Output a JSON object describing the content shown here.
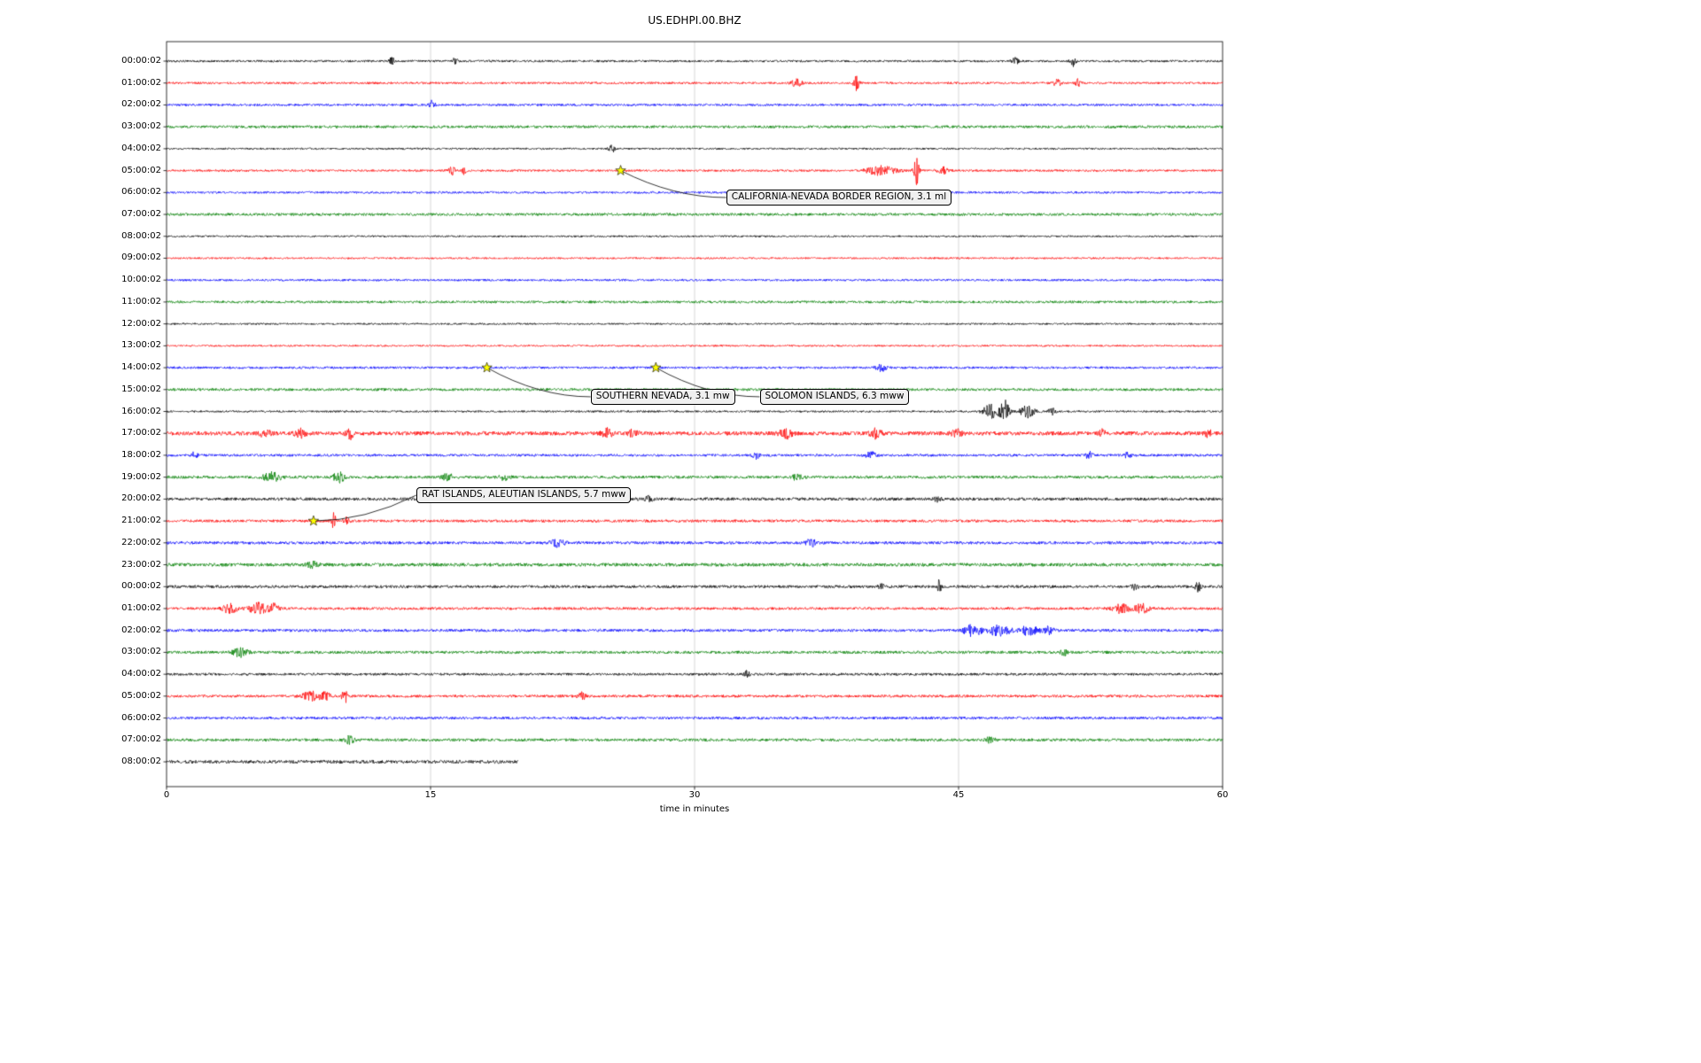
{
  "chart_data": {
    "type": "line",
    "subtype": "helicorder-dayplot",
    "title": "US.EDHPI.00.BHZ",
    "xlabel": "time in minutes",
    "xlim": [
      0,
      60
    ],
    "xticks": [
      0,
      15,
      30,
      45,
      60
    ],
    "grid": "vertical-only",
    "trace_colors": {
      "black": "#000000",
      "red": "#ff0000",
      "blue": "#0000ff",
      "green": "#008000"
    },
    "marker": {
      "shape": "star",
      "color": "#ffff00"
    },
    "rows": [
      {
        "label": "00:00:02",
        "color": "black",
        "amp": 1.2,
        "events": [
          {
            "x": 12.8,
            "a": 4,
            "w": 0.15
          },
          {
            "x": 16.4,
            "a": 5,
            "w": 0.12
          },
          {
            "x": 48.2,
            "a": 4,
            "w": 0.2
          },
          {
            "x": 51.5,
            "a": 6,
            "w": 0.15
          }
        ]
      },
      {
        "label": "01:00:02",
        "color": "red",
        "amp": 1.2,
        "events": [
          {
            "x": 35.8,
            "a": 4,
            "w": 0.3
          },
          {
            "x": 39.2,
            "a": 9,
            "w": 0.15
          },
          {
            "x": 50.6,
            "a": 4,
            "w": 0.2
          },
          {
            "x": 51.8,
            "a": 5,
            "w": 0.15
          }
        ]
      },
      {
        "label": "02:00:02",
        "color": "blue",
        "amp": 1.3,
        "events": [
          {
            "x": 15.1,
            "a": 5,
            "w": 0.15
          }
        ]
      },
      {
        "label": "03:00:02",
        "color": "green",
        "amp": 1.5,
        "events": []
      },
      {
        "label": "04:00:02",
        "color": "black",
        "amp": 1.0,
        "events": [
          {
            "x": 25.3,
            "a": 4,
            "w": 0.18
          }
        ]
      },
      {
        "label": "05:00:02",
        "color": "red",
        "amp": 1.2,
        "events": [
          {
            "x": 16.2,
            "a": 5,
            "w": 0.18
          },
          {
            "x": 16.9,
            "a": 4,
            "w": 0.12
          },
          {
            "x": 40.6,
            "a": 5,
            "w": 0.8
          },
          {
            "x": 42.6,
            "a": 16,
            "w": 0.15
          },
          {
            "x": 44.1,
            "a": 4,
            "w": 0.3
          }
        ]
      },
      {
        "label": "06:00:02",
        "color": "blue",
        "amp": 1.2,
        "events": []
      },
      {
        "label": "07:00:02",
        "color": "green",
        "amp": 1.5,
        "events": []
      },
      {
        "label": "08:00:02",
        "color": "black",
        "amp": 1.0,
        "events": []
      },
      {
        "label": "09:00:02",
        "color": "red",
        "amp": 1.0,
        "events": []
      },
      {
        "label": "10:00:02",
        "color": "blue",
        "amp": 1.2,
        "events": []
      },
      {
        "label": "11:00:02",
        "color": "green",
        "amp": 1.4,
        "events": []
      },
      {
        "label": "12:00:02",
        "color": "black",
        "amp": 1.0,
        "events": []
      },
      {
        "label": "13:00:02",
        "color": "red",
        "amp": 1.0,
        "events": []
      },
      {
        "label": "14:00:02",
        "color": "blue",
        "amp": 1.3,
        "events": [
          {
            "x": 40.6,
            "a": 4,
            "w": 0.3
          }
        ]
      },
      {
        "label": "15:00:02",
        "color": "green",
        "amp": 1.5,
        "events": []
      },
      {
        "label": "16:00:02",
        "color": "black",
        "amp": 1.1,
        "events": [
          {
            "x": 46.8,
            "a": 8,
            "w": 0.4
          },
          {
            "x": 47.6,
            "a": 14,
            "w": 0.25
          },
          {
            "x": 48.9,
            "a": 7,
            "w": 0.4
          },
          {
            "x": 50.3,
            "a": 4,
            "w": 0.2
          }
        ]
      },
      {
        "label": "17:00:02",
        "color": "red",
        "amp": 2.2,
        "events": [
          {
            "x": 5.6,
            "a": 4,
            "w": 0.3
          },
          {
            "x": 7.6,
            "a": 5,
            "w": 0.3
          },
          {
            "x": 10.4,
            "a": 7,
            "w": 0.2
          },
          {
            "x": 25.0,
            "a": 5,
            "w": 0.3
          },
          {
            "x": 26.5,
            "a": 4,
            "w": 0.25
          },
          {
            "x": 35.2,
            "a": 5,
            "w": 0.35
          },
          {
            "x": 40.3,
            "a": 5,
            "w": 0.3
          },
          {
            "x": 44.9,
            "a": 4,
            "w": 0.3
          },
          {
            "x": 53.2,
            "a": 4,
            "w": 0.2
          },
          {
            "x": 59.2,
            "a": 4,
            "w": 0.2
          }
        ]
      },
      {
        "label": "18:00:02",
        "color": "blue",
        "amp": 1.4,
        "events": [
          {
            "x": 1.6,
            "a": 4,
            "w": 0.2
          },
          {
            "x": 33.5,
            "a": 4,
            "w": 0.2
          },
          {
            "x": 40.0,
            "a": 4,
            "w": 0.3
          },
          {
            "x": 52.4,
            "a": 4,
            "w": 0.2
          },
          {
            "x": 54.6,
            "a": 3,
            "w": 0.2
          }
        ]
      },
      {
        "label": "19:00:02",
        "color": "green",
        "amp": 1.6,
        "events": [
          {
            "x": 6.0,
            "a": 5,
            "w": 0.5
          },
          {
            "x": 9.8,
            "a": 6,
            "w": 0.3
          },
          {
            "x": 16.0,
            "a": 4,
            "w": 0.3
          },
          {
            "x": 19.2,
            "a": 3,
            "w": 0.3
          },
          {
            "x": 35.8,
            "a": 3,
            "w": 0.3
          }
        ]
      },
      {
        "label": "20:00:02",
        "color": "black",
        "amp": 1.7,
        "events": [
          {
            "x": 27.4,
            "a": 3,
            "w": 0.2
          },
          {
            "x": 43.8,
            "a": 3,
            "w": 0.2
          }
        ]
      },
      {
        "label": "21:00:02",
        "color": "red",
        "amp": 1.5,
        "events": [
          {
            "x": 9.5,
            "a": 9,
            "w": 0.12
          },
          {
            "x": 10.2,
            "a": 4,
            "w": 0.15
          }
        ]
      },
      {
        "label": "22:00:02",
        "color": "blue",
        "amp": 1.6,
        "events": [
          {
            "x": 22.2,
            "a": 4,
            "w": 0.4
          },
          {
            "x": 36.6,
            "a": 4,
            "w": 0.3
          }
        ]
      },
      {
        "label": "23:00:02",
        "color": "green",
        "amp": 1.9,
        "events": [
          {
            "x": 8.3,
            "a": 3,
            "w": 0.3
          }
        ]
      },
      {
        "label": "00:00:02",
        "color": "black",
        "amp": 1.6,
        "events": [
          {
            "x": 40.6,
            "a": 4,
            "w": 0.15
          },
          {
            "x": 43.9,
            "a": 8,
            "w": 0.1
          },
          {
            "x": 55.0,
            "a": 3,
            "w": 0.2
          },
          {
            "x": 58.6,
            "a": 5,
            "w": 0.15
          }
        ]
      },
      {
        "label": "01:00:02",
        "color": "red",
        "amp": 1.5,
        "events": [
          {
            "x": 3.6,
            "a": 5,
            "w": 0.4
          },
          {
            "x": 5.2,
            "a": 6,
            "w": 0.5
          },
          {
            "x": 6.1,
            "a": 5,
            "w": 0.3
          },
          {
            "x": 54.2,
            "a": 5,
            "w": 0.5
          },
          {
            "x": 55.4,
            "a": 5,
            "w": 0.4
          }
        ]
      },
      {
        "label": "02:00:02",
        "color": "blue",
        "amp": 1.6,
        "events": [
          {
            "x": 45.8,
            "a": 6,
            "w": 0.5
          },
          {
            "x": 47.3,
            "a": 6,
            "w": 0.6
          },
          {
            "x": 49.0,
            "a": 5,
            "w": 0.5
          },
          {
            "x": 50.1,
            "a": 4,
            "w": 0.3
          }
        ]
      },
      {
        "label": "03:00:02",
        "color": "green",
        "amp": 1.6,
        "events": [
          {
            "x": 4.2,
            "a": 5,
            "w": 0.4
          },
          {
            "x": 51.0,
            "a": 3,
            "w": 0.2
          }
        ]
      },
      {
        "label": "04:00:02",
        "color": "black",
        "amp": 1.4,
        "events": [
          {
            "x": 33.0,
            "a": 4,
            "w": 0.15
          }
        ]
      },
      {
        "label": "05:00:02",
        "color": "red",
        "amp": 1.5,
        "events": [
          {
            "x": 8.2,
            "a": 5,
            "w": 0.5
          },
          {
            "x": 9.0,
            "a": 4,
            "w": 0.3
          },
          {
            "x": 10.1,
            "a": 13,
            "w": 0.12
          },
          {
            "x": 23.6,
            "a": 4,
            "w": 0.2
          }
        ]
      },
      {
        "label": "06:00:02",
        "color": "blue",
        "amp": 1.5,
        "events": []
      },
      {
        "label": "07:00:02",
        "color": "green",
        "amp": 1.6,
        "events": [
          {
            "x": 10.4,
            "a": 4,
            "w": 0.3
          },
          {
            "x": 46.8,
            "a": 3,
            "w": 0.3
          }
        ]
      },
      {
        "label": "08:00:02",
        "color": "black",
        "amp": 1.8,
        "end": 20,
        "events": []
      }
    ],
    "annotations": [
      {
        "text": "CALIFORNIA-NEVADA BORDER REGION, 3.1 ml",
        "row": 5,
        "x": 25.8,
        "label_row": 6.23,
        "label_x": 31.8
      },
      {
        "text": "SOUTHERN NEVADA, 3.1 mw",
        "row": 14,
        "x": 18.2,
        "label_row": 15.33,
        "label_x": 24.1
      },
      {
        "text": "SOLOMON ISLANDS, 6.3 mww",
        "row": 14,
        "x": 27.8,
        "label_row": 15.33,
        "label_x": 33.7
      },
      {
        "text": "RAT ISLANDS, ALEUTIAN ISLANDS, 5.7 mww",
        "row": 21,
        "x": 8.35,
        "label_row": 19.82,
        "label_x": 14.2
      }
    ]
  }
}
